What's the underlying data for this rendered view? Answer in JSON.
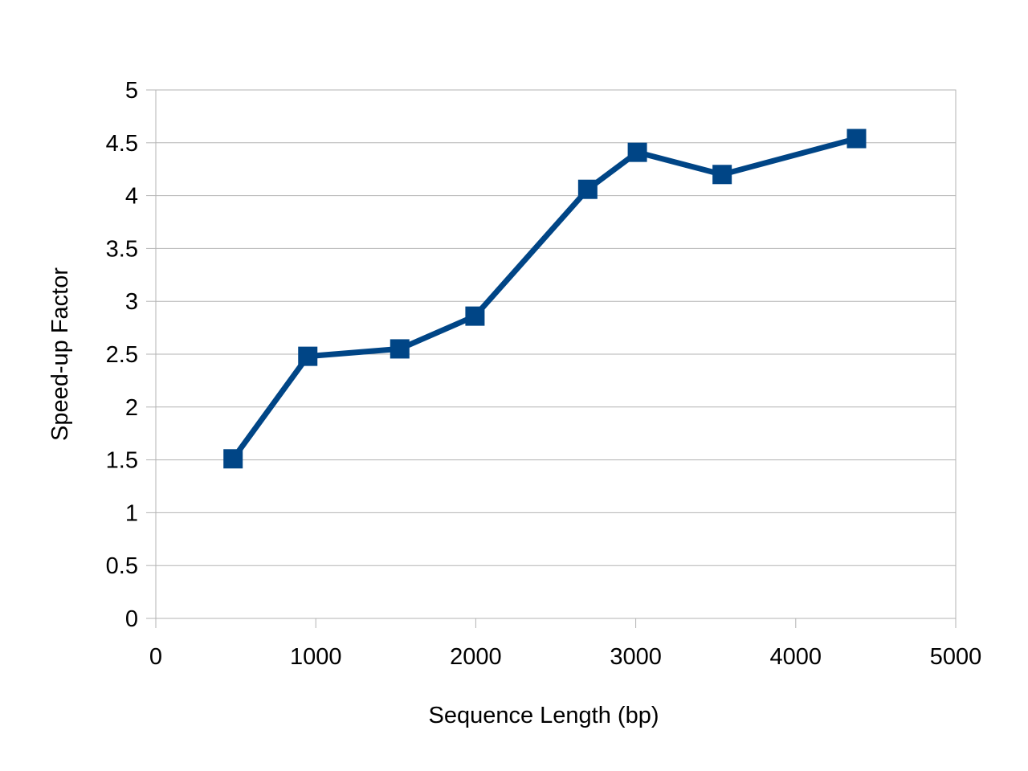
{
  "chart_data": {
    "type": "line",
    "title": "",
    "xlabel": "Sequence Length (bp)",
    "ylabel": "Speed-up Factor",
    "xlim": [
      0,
      5000
    ],
    "ylim": [
      0,
      5
    ],
    "x_ticks": [
      0,
      1000,
      2000,
      3000,
      4000,
      5000
    ],
    "y_ticks": [
      0,
      0.5,
      1,
      1.5,
      2,
      2.5,
      3,
      3.5,
      4,
      4.5,
      5
    ],
    "x_tick_labels": [
      "0",
      "1000",
      "2000",
      "3000",
      "4000",
      "5000"
    ],
    "y_tick_labels": [
      "0",
      "0.5",
      "1",
      "1.5",
      "2",
      "2.5",
      "3",
      "3.5",
      "4",
      "4.5",
      "5"
    ],
    "grid": "horizontal",
    "legend": "none",
    "series": [
      {
        "x": [
          483,
          950,
          1525,
          1995,
          2700,
          3010,
          3540,
          4380
        ],
        "y": [
          1.51,
          2.48,
          2.55,
          2.86,
          4.06,
          4.41,
          4.2,
          4.54
        ],
        "color": "#004586",
        "marker": "square"
      }
    ]
  }
}
